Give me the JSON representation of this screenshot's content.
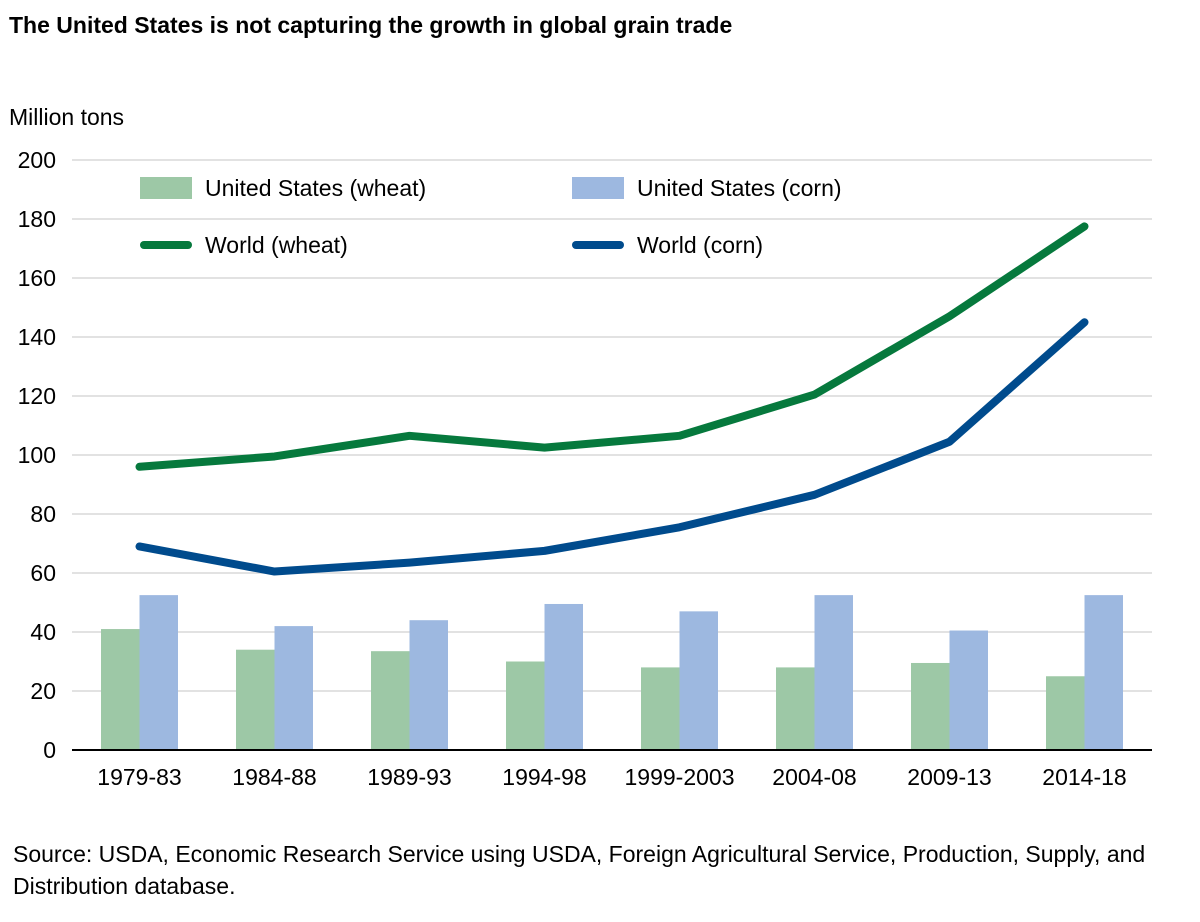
{
  "chart_data": {
    "type": "bar+line",
    "title": "The United States is not capturing the growth in global grain trade",
    "ylabel": "Million tons",
    "xlabel": "",
    "ylim": [
      0,
      200
    ],
    "yticks": [
      0,
      20,
      40,
      60,
      80,
      100,
      120,
      140,
      160,
      180,
      200
    ],
    "grid": true,
    "legend": "top",
    "categories": [
      "1979-83",
      "1984-88",
      "1989-93",
      "1994-98",
      "1999-2003",
      "2004-08",
      "2009-13",
      "2014-18"
    ],
    "series": [
      {
        "name": "United States (wheat)",
        "kind": "bar",
        "color": "#9dc8a6",
        "values": [
          41,
          34,
          33.5,
          30,
          28,
          28,
          29.5,
          25
        ]
      },
      {
        "name": "United States (corn)",
        "kind": "bar",
        "color": "#9db8e0",
        "values": [
          52.5,
          42,
          44,
          49.5,
          47,
          52.5,
          40.5,
          52.5
        ]
      },
      {
        "name": "World (wheat)",
        "kind": "line",
        "color": "#06793d",
        "values": [
          96,
          99.5,
          106.5,
          102.5,
          106.5,
          120.5,
          147,
          177.5
        ]
      },
      {
        "name": "World (corn)",
        "kind": "line",
        "color": "#004b8d",
        "values": [
          69,
          60.5,
          63.5,
          67.5,
          75.5,
          86.5,
          104.5,
          145
        ]
      }
    ],
    "source": "Source: USDA, Economic Research Service using USDA, Foreign Agricultural Service, Production, Supply, and Distribution database."
  }
}
